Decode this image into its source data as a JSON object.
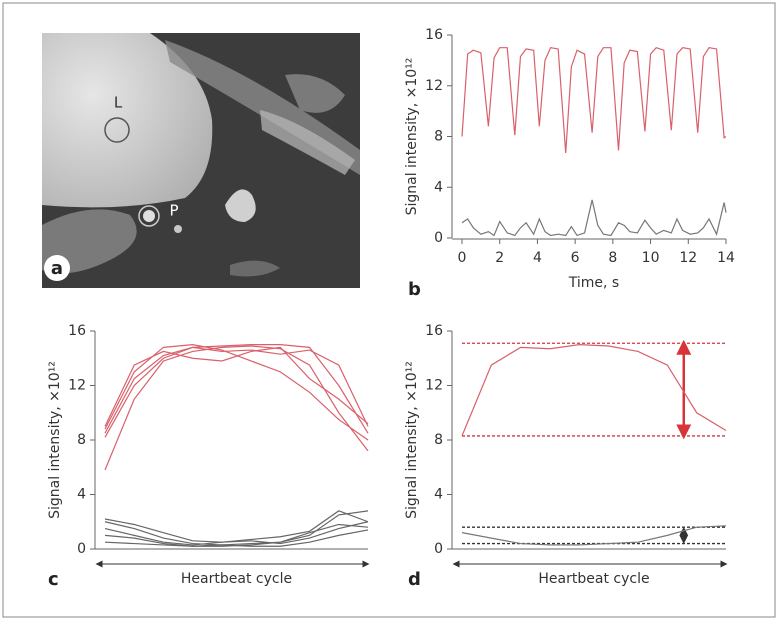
{
  "image": {
    "panel": "a",
    "labels": [
      "L",
      "P"
    ]
  },
  "chart_data": [
    {
      "type": "line",
      "panel": "b",
      "xlabel": "Time, s",
      "ylabel": "Signal intensity, ×10¹²",
      "x": [
        0,
        0.3,
        0.6,
        1.0,
        1.4,
        1.7,
        2.0,
        2.4,
        2.8,
        3.1,
        3.4,
        3.8,
        4.1,
        4.4,
        4.7,
        5.1,
        5.5,
        5.8,
        6.1,
        6.5,
        6.9,
        7.2,
        7.5,
        7.9,
        8.3,
        8.6,
        8.9,
        9.3,
        9.7,
        10.0,
        10.3,
        10.7,
        11.1,
        11.4,
        11.7,
        12.1,
        12.5,
        12.8,
        13.1,
        13.5,
        13.9,
        14
      ],
      "series": [
        {
          "color": "#d9606a",
          "values": [
            8,
            14.5,
            14.8,
            14.6,
            8.8,
            14.2,
            15,
            15,
            8.1,
            14.3,
            14.9,
            14.8,
            8.8,
            14.0,
            15,
            14.9,
            6.7,
            13.5,
            14.8,
            14.5,
            8.3,
            14.3,
            15,
            15,
            6.9,
            13.8,
            14.8,
            14.7,
            8.4,
            14.5,
            15,
            14.8,
            8.5,
            14.5,
            15,
            14.9,
            8.3,
            14.3,
            15,
            14.9,
            7.9,
            8.0
          ]
        },
        {
          "color": "#777777",
          "values": [
            1.2,
            1.5,
            0.8,
            0.3,
            0.5,
            0.2,
            1.3,
            0.4,
            0.2,
            0.8,
            1.2,
            0.3,
            1.5,
            0.5,
            0.2,
            0.3,
            0.2,
            0.9,
            0.2,
            0.4,
            3.0,
            1.0,
            0.3,
            0.2,
            1.2,
            1.0,
            0.5,
            0.4,
            1.4,
            0.8,
            0.3,
            0.6,
            0.4,
            1.5,
            0.6,
            0.3,
            0.4,
            0.8,
            1.5,
            0.3,
            2.8,
            2.0
          ]
        }
      ],
      "xlim": [
        0,
        14
      ],
      "xticks": [
        0,
        2,
        4,
        6,
        8,
        10,
        12,
        14
      ],
      "ylim": [
        0,
        16
      ],
      "yticks": [
        0,
        4,
        8,
        12,
        16
      ]
    },
    {
      "type": "line",
      "panel": "c",
      "xlabel": "Heartbeat cycle",
      "ylabel": "Signal intensity, ×10¹²",
      "categories": [
        null,
        null,
        null,
        null,
        null,
        null,
        null,
        null,
        null,
        null
      ],
      "series": [
        {
          "color": "#d9606a",
          "values": [
            8.5,
            12.5,
            14.2,
            14.8,
            14.9,
            15,
            15,
            14.8,
            12,
            8.5
          ]
        },
        {
          "color": "#d9606a",
          "values": [
            5.8,
            11,
            13.8,
            14.5,
            14.8,
            14.9,
            14.7,
            13.5,
            10,
            7.2
          ]
        },
        {
          "color": "#d9606a",
          "values": [
            9,
            13.5,
            14.5,
            14,
            13.8,
            14.5,
            14.8,
            12.5,
            11,
            9.2
          ]
        },
        {
          "color": "#d9606a",
          "values": [
            8.2,
            12,
            14,
            14.8,
            14.5,
            14.6,
            14.3,
            14.6,
            13.5,
            9
          ]
        },
        {
          "color": "#d9606a",
          "values": [
            8.8,
            13,
            14.8,
            15,
            14.6,
            13.8,
            13,
            11.5,
            9.5,
            8
          ]
        },
        {
          "color": "#666666",
          "values": [
            2.0,
            1.5,
            0.8,
            0.4,
            0.3,
            0.4,
            0.5,
            1.0,
            2.5,
            2.8
          ]
        },
        {
          "color": "#666666",
          "values": [
            1.5,
            1.0,
            0.5,
            0.3,
            0.5,
            0.6,
            0.4,
            0.8,
            1.5,
            2.0
          ]
        },
        {
          "color": "#666666",
          "values": [
            1.0,
            0.8,
            0.4,
            0.2,
            0.2,
            0.3,
            0.5,
            1.2,
            1.8,
            1.6
          ]
        },
        {
          "color": "#666666",
          "values": [
            0.5,
            0.4,
            0.3,
            0.2,
            0.3,
            0.2,
            0.2,
            0.5,
            1.0,
            1.4
          ]
        },
        {
          "color": "#666666",
          "values": [
            2.2,
            1.8,
            1.2,
            0.6,
            0.5,
            0.7,
            0.9,
            1.3,
            2.8,
            2.0
          ]
        }
      ],
      "ylim": [
        0,
        16
      ],
      "yticks": [
        0,
        4,
        8,
        12,
        16
      ]
    },
    {
      "type": "line",
      "panel": "d",
      "xlabel": "Heartbeat cycle",
      "ylabel": "Signal intensity, ×10¹²",
      "categories": [
        null,
        null,
        null,
        null,
        null,
        null,
        null,
        null,
        null,
        null
      ],
      "series": [
        {
          "color": "#d9606a",
          "values": [
            8.3,
            13.5,
            14.8,
            14.7,
            15,
            14.9,
            14.5,
            13.5,
            10,
            8.7
          ]
        },
        {
          "color": "#777777",
          "values": [
            1.2,
            0.8,
            0.4,
            0.3,
            0.3,
            0.4,
            0.5,
            1.0,
            1.6,
            1.7
          ]
        }
      ],
      "reference_lines": [
        {
          "value": 15.1,
          "color": "#d9333a"
        },
        {
          "value": 8.3,
          "color": "#d9333a"
        },
        {
          "value": 1.6,
          "color": "#333333"
        },
        {
          "value": 0.4,
          "color": "#333333"
        }
      ],
      "ylim": [
        0,
        16
      ],
      "yticks": [
        0,
        4,
        8,
        12,
        16
      ]
    }
  ]
}
